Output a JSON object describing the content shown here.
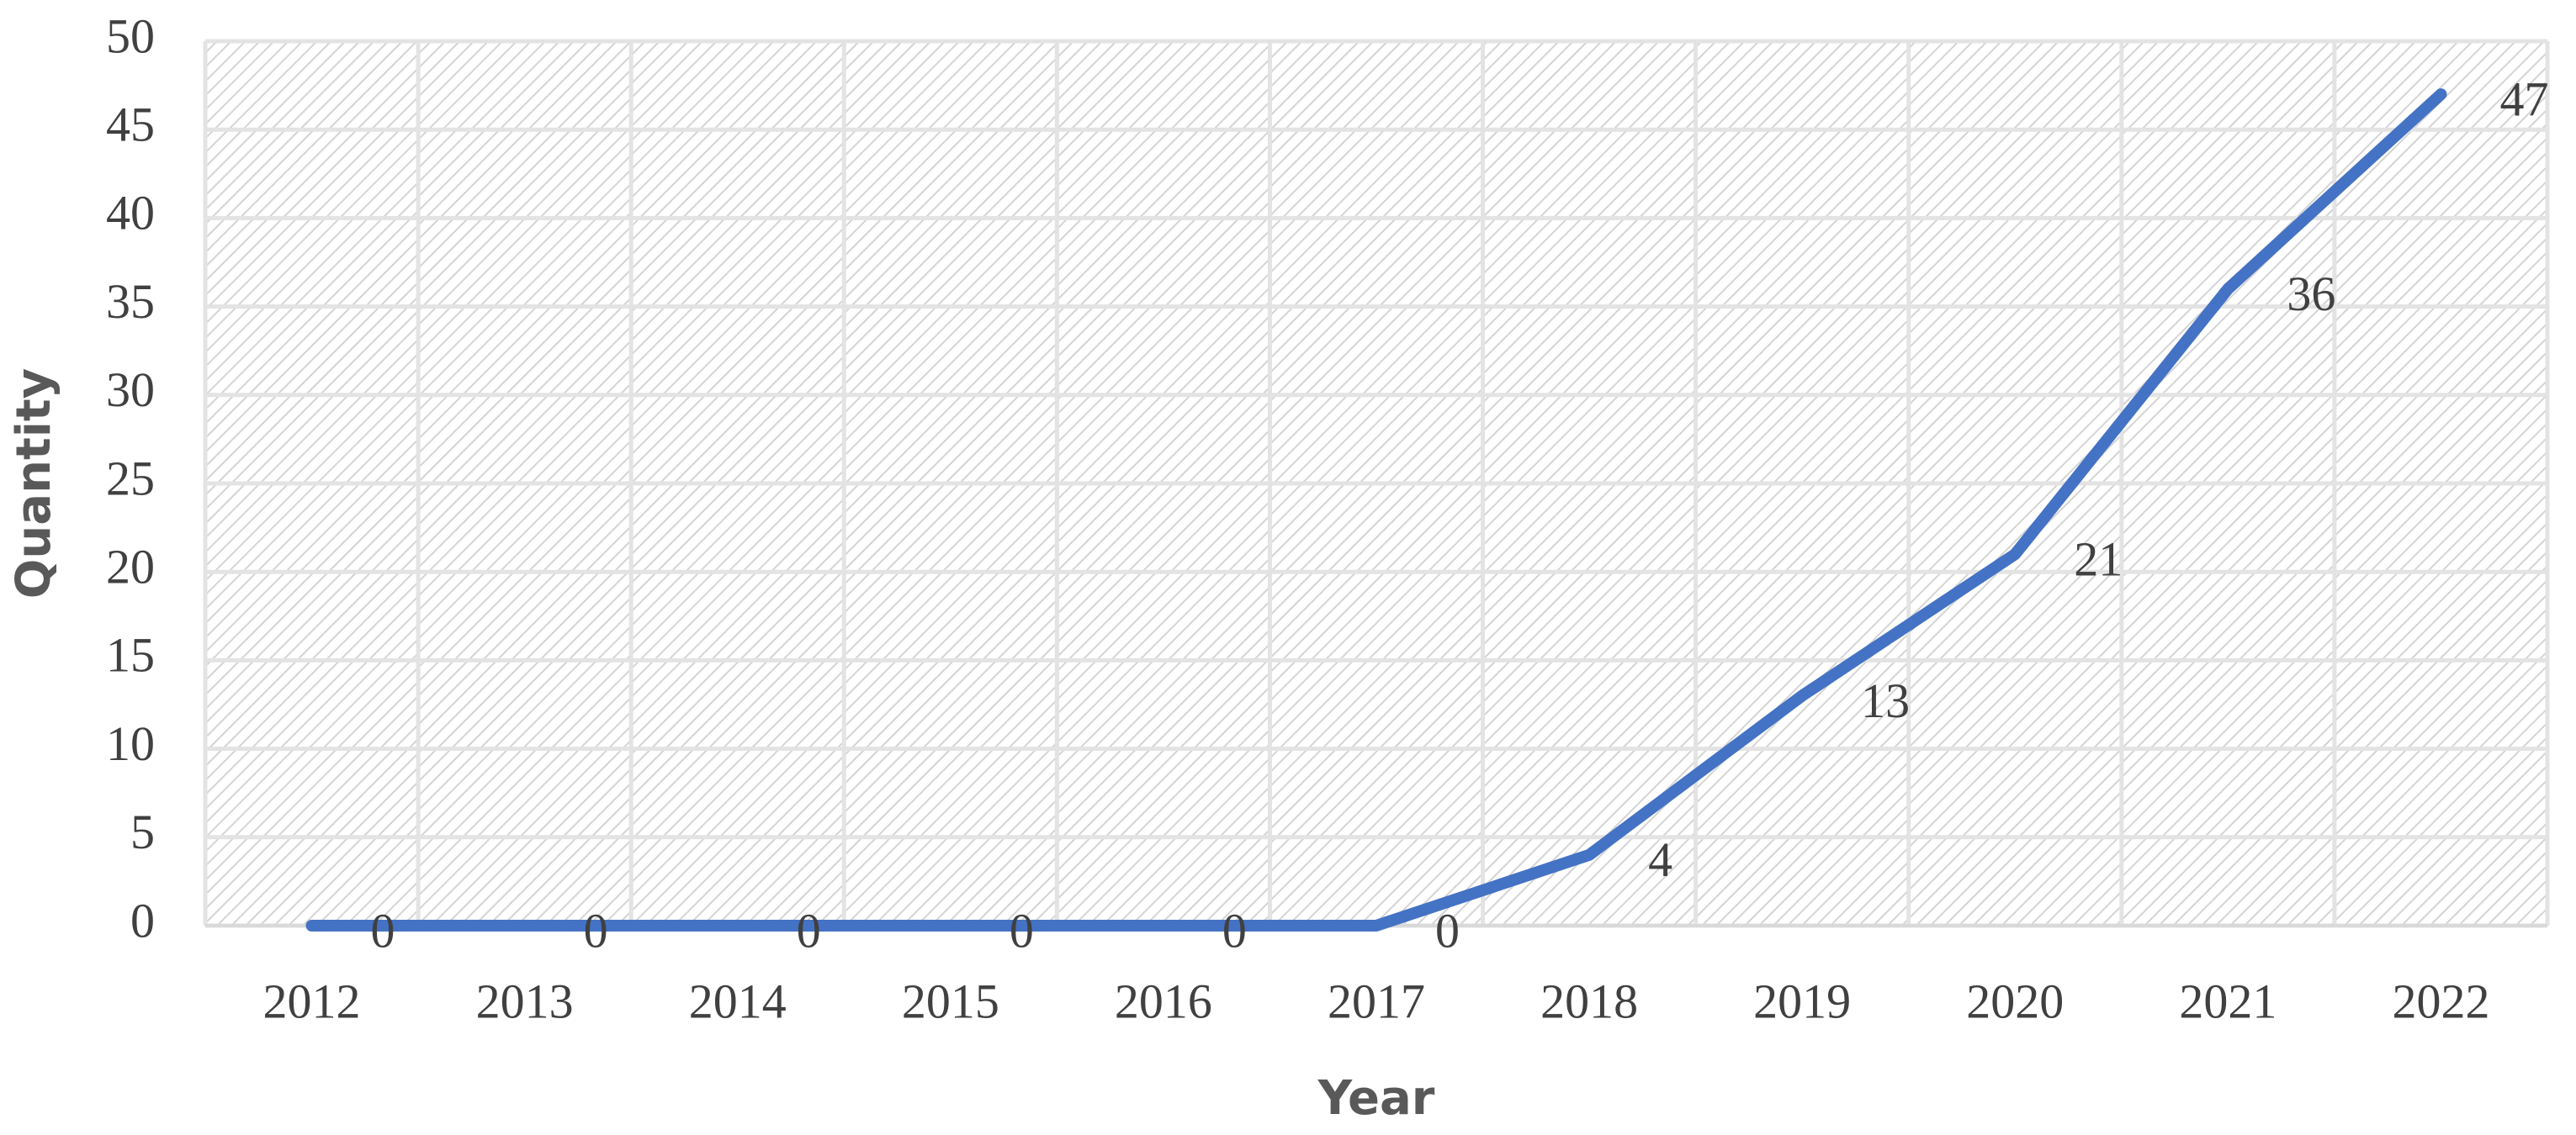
{
  "chart_data": {
    "type": "line",
    "x_label": "Year",
    "y_label": "Quantity",
    "categories": [
      "2012",
      "2013",
      "2014",
      "2015",
      "2016",
      "2017",
      "2018",
      "2019",
      "2020",
      "2021",
      "2022"
    ],
    "values": [
      0,
      0,
      0,
      0,
      0,
      0,
      4,
      13,
      21,
      36,
      47
    ],
    "color": "#4472c4",
    "ylim": [
      0,
      50
    ],
    "yticks": [
      0,
      5,
      10,
      15,
      20,
      25,
      30,
      35,
      40,
      45,
      50
    ],
    "grid": true
  }
}
